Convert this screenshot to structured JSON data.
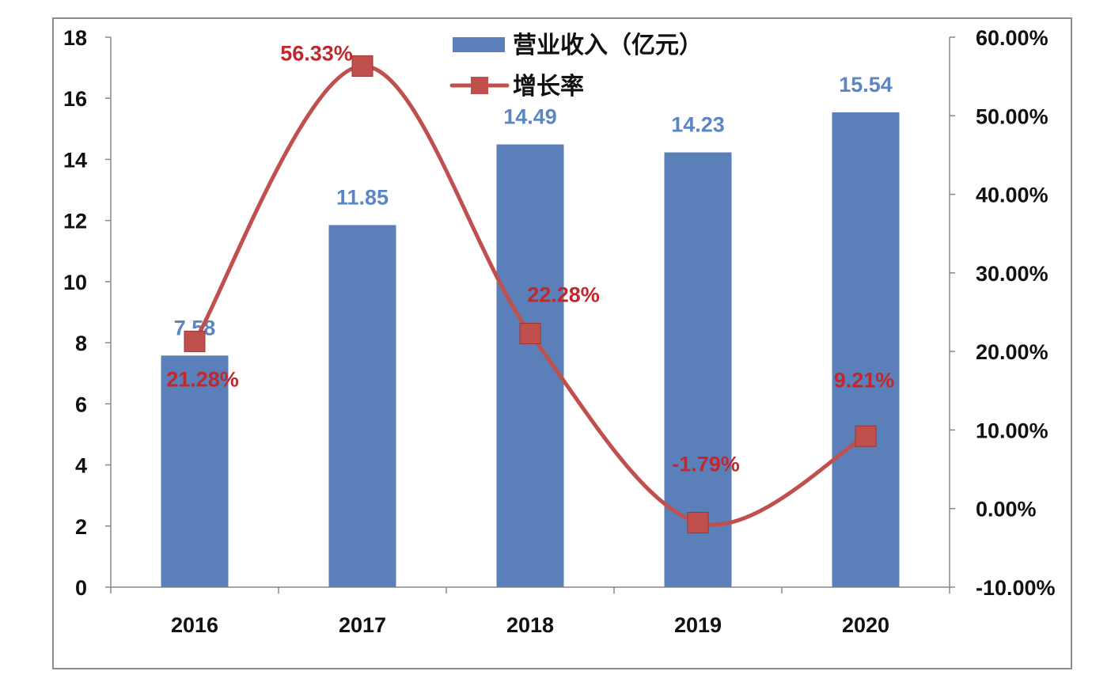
{
  "chart_data": {
    "type": "bar+line",
    "categories": [
      "2016",
      "2017",
      "2018",
      "2019",
      "2020"
    ],
    "series": [
      {
        "name": "营业收入（亿元）",
        "type": "bar",
        "axis": "left",
        "values": [
          7.58,
          11.85,
          14.49,
          14.23,
          15.54
        ],
        "labels": [
          "7.58",
          "11.85",
          "14.49",
          "14.23",
          "15.54"
        ],
        "color": "#5B80B9"
      },
      {
        "name": "增长率",
        "type": "line",
        "axis": "right",
        "smooth": true,
        "marker": "square",
        "values": [
          21.28,
          56.33,
          22.28,
          -1.79,
          9.21
        ],
        "labels": [
          "21.28%",
          "56.33%",
          "22.28%",
          "-1.79%",
          "9.21%"
        ],
        "color": "#C0504D"
      }
    ],
    "y_left": {
      "ylim": [
        0,
        18
      ],
      "ticks": [
        "0",
        "2",
        "4",
        "6",
        "8",
        "10",
        "12",
        "14",
        "16",
        "18"
      ]
    },
    "y_right": {
      "ylim": [
        -10,
        60
      ],
      "ticks": [
        "-10.00%",
        "0.00%",
        "10.00%",
        "20.00%",
        "30.00%",
        "40.00%",
        "50.00%",
        "60.00%"
      ]
    },
    "legend": "top-center",
    "grid": false,
    "label_colors": {
      "bar": "#5B86C4",
      "line": "#C0282D"
    }
  }
}
